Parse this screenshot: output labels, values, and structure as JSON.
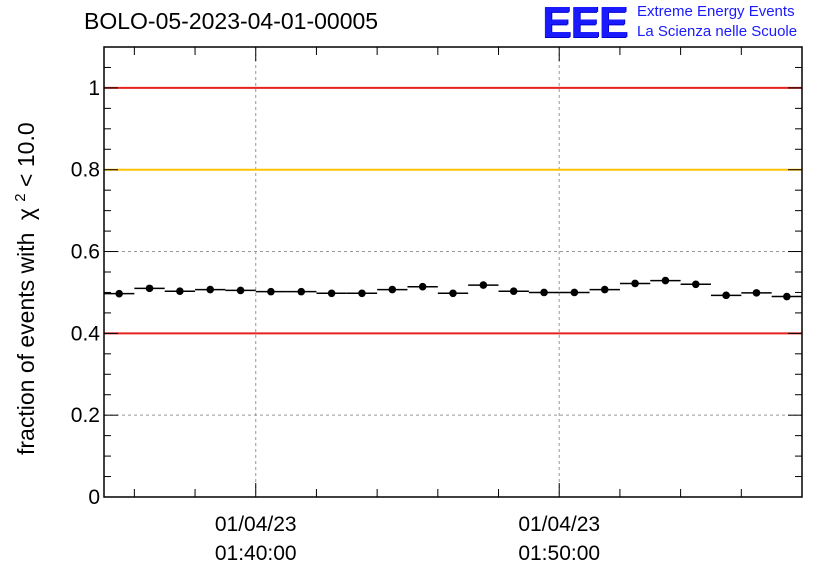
{
  "title": "BOLO-05-2023-04-01-00005",
  "logo": {
    "mark": "EEE",
    "line1": "Extreme Energy Events",
    "line2": "La Scienza nelle Scuole",
    "color": "#1a1aff"
  },
  "chart_data": {
    "type": "scatter",
    "title": "BOLO-05-2023-04-01-00005",
    "ylabel_prefix": "fraction of events with",
    "ylabel_symbol": "χ",
    "ylabel_sup": "2",
    "ylabel_suffix": " < 10.0",
    "xlabel": "",
    "ylim": [
      0,
      1.1
    ],
    "xlim_minutes": [
      35,
      58
    ],
    "y_ticks": [
      {
        "value": 0,
        "label": "0"
      },
      {
        "value": 0.2,
        "label": "0.2"
      },
      {
        "value": 0.4,
        "label": "0.4"
      },
      {
        "value": 0.6,
        "label": "0.6"
      },
      {
        "value": 0.8,
        "label": "0.8"
      },
      {
        "value": 1,
        "label": "1"
      }
    ],
    "x_ticks": [
      {
        "minute": 40,
        "date": "01/04/23",
        "time": "01:40:00"
      },
      {
        "minute": 50,
        "date": "01/04/23",
        "time": "01:50:00"
      }
    ],
    "reference_lines": [
      {
        "y": 1.0,
        "color": "#e8231f"
      },
      {
        "y": 0.8,
        "color": "#ffc000"
      },
      {
        "y": 0.4,
        "color": "#e8231f"
      }
    ],
    "grid": true,
    "bin_width_minutes": 1,
    "series": [
      {
        "x_minutes": [
          35.5,
          36.5,
          37.5,
          38.5,
          39.5,
          40.5,
          41.5,
          42.5,
          43.5,
          44.5,
          45.5,
          46.5,
          47.5,
          48.5,
          49.5,
          50.5,
          51.5,
          52.5,
          53.5,
          54.5,
          55.5,
          56.5,
          57.5
        ],
        "values": [
          0.497,
          0.51,
          0.503,
          0.507,
          0.505,
          0.502,
          0.502,
          0.498,
          0.498,
          0.507,
          0.514,
          0.498,
          0.518,
          0.503,
          0.5,
          0.5,
          0.507,
          0.522,
          0.529,
          0.52,
          0.493,
          0.499,
          0.49
        ],
        "errors": [
          0.006,
          0.006,
          0.006,
          0.006,
          0.006,
          0.006,
          0.006,
          0.006,
          0.006,
          0.006,
          0.006,
          0.006,
          0.006,
          0.006,
          0.006,
          0.006,
          0.006,
          0.006,
          0.006,
          0.006,
          0.006,
          0.006,
          0.006
        ]
      }
    ]
  }
}
